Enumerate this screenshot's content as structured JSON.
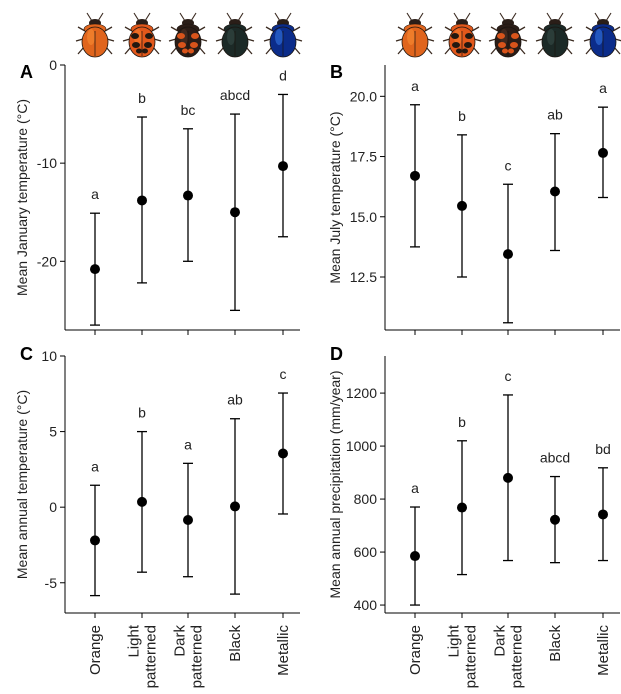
{
  "chart_data": [
    {
      "type": "scatter",
      "panel": "A",
      "ylabel": "Mean January temperature (°C)",
      "categories": [
        "Orange",
        "Light patterned",
        "Dark patterned",
        "Black",
        "Metallic"
      ],
      "ylim": [
        -27,
        0
      ],
      "yticks": [
        -20,
        -10,
        0
      ],
      "ytick_labels": [
        "-20",
        "-10",
        "0"
      ],
      "means": [
        -20.8,
        -13.8,
        -13.3,
        -15.0,
        -10.3
      ],
      "lower": [
        -26.5,
        -22.2,
        -20.0,
        -25.0,
        -17.5
      ],
      "upper": [
        -15.1,
        -5.3,
        -6.5,
        -5.0,
        -3.0
      ],
      "significance": [
        "a",
        "b",
        "bc",
        "abcd",
        "d"
      ]
    },
    {
      "type": "scatter",
      "panel": "B",
      "ylabel": "Mean July temperature (°C)",
      "categories": [
        "Orange",
        "Light patterned",
        "Dark patterned",
        "Black",
        "Metallic"
      ],
      "ylim": [
        10.3,
        21.3
      ],
      "yticks": [
        12.5,
        15.0,
        17.5,
        20.0
      ],
      "ytick_labels": [
        "12.5",
        "15.0",
        "17.5",
        "20.0"
      ],
      "means": [
        16.7,
        15.45,
        13.45,
        16.05,
        17.65
      ],
      "lower": [
        13.75,
        12.5,
        10.6,
        13.6,
        15.8
      ],
      "upper": [
        19.65,
        18.4,
        16.35,
        18.45,
        19.55
      ],
      "significance": [
        "a",
        "b",
        "c",
        "ab",
        "a"
      ]
    },
    {
      "type": "scatter",
      "panel": "C",
      "ylabel": "Mean annual temperature (°C)",
      "categories": [
        "Orange",
        "Light patterned",
        "Dark patterned",
        "Black",
        "Metallic"
      ],
      "ylim": [
        -7.0,
        10.0
      ],
      "yticks": [
        -5,
        0,
        5,
        10
      ],
      "ytick_labels": [
        "-5",
        "0",
        "5",
        "10"
      ],
      "means": [
        -2.2,
        0.35,
        -0.85,
        0.05,
        3.55
      ],
      "lower": [
        -5.85,
        -4.3,
        -4.6,
        -5.75,
        -0.45
      ],
      "upper": [
        1.45,
        5.0,
        2.9,
        5.85,
        7.55
      ],
      "significance": [
        "a",
        "b",
        "a",
        "ab",
        "c"
      ]
    },
    {
      "type": "scatter",
      "panel": "D",
      "ylabel": "Mean annual precipitation (mm/year)",
      "categories": [
        "Orange",
        "Light patterned",
        "Dark patterned",
        "Black",
        "Metallic"
      ],
      "ylim": [
        370,
        1340
      ],
      "yticks": [
        400,
        600,
        800,
        1000,
        1200
      ],
      "ytick_labels": [
        "400",
        "600",
        "800",
        "1000",
        "1200"
      ],
      "means": [
        585,
        768,
        880,
        722,
        742
      ],
      "lower": [
        400,
        515,
        568,
        560,
        568
      ],
      "upper": [
        770,
        1020,
        1193,
        885,
        918
      ],
      "significance": [
        "a",
        "b",
        "c",
        "abcd",
        "bd"
      ]
    }
  ],
  "x_labels": [
    [
      "Orange"
    ],
    [
      "Light",
      "patterned"
    ],
    [
      "Dark",
      "patterned"
    ],
    [
      "Black"
    ],
    [
      "Metallic"
    ]
  ],
  "beetle_icons": [
    {
      "name": "orange-beetle-icon",
      "body": "#e0651d",
      "pattern": "none",
      "accent": "#ff9a3c"
    },
    {
      "name": "light-patterned-beetle-icon",
      "body": "#e2581b",
      "pattern": "#231810",
      "accent": "#ff8a33"
    },
    {
      "name": "dark-patterned-beetle-icon",
      "body": "#2b1d17",
      "pattern": "#d9541b",
      "accent": "#5a3a2a"
    },
    {
      "name": "black-beetle-icon",
      "body": "#1c2a27",
      "pattern": "none",
      "accent": "#3d5550"
    },
    {
      "name": "metallic-beetle-icon",
      "body": "#0b2c8a",
      "pattern": "none",
      "accent": "#3f8cff"
    }
  ]
}
